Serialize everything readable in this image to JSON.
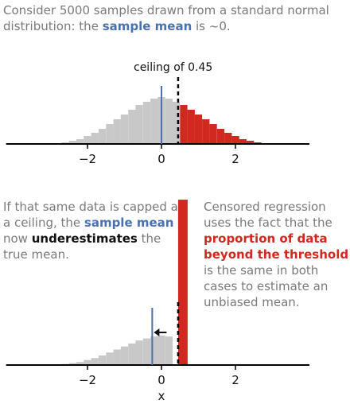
{
  "intro": {
    "part1": "Consider 5000 samples drawn from a standard normal distribution: the ",
    "highlight": "sample mean",
    "part2": " is ~0."
  },
  "ceiling_label": "ceiling of 0.45",
  "left_note": {
    "part1": "If that same data is capped at a ceiling, the ",
    "highlight1": "sample mean",
    "part2": " now ",
    "highlight2": "underestimates",
    "part3": " the true mean."
  },
  "right_note": {
    "part1": "Censored regression uses the fact that the ",
    "highlight": "proportion of data beyond the threshold",
    "part2": " is the same in both cases to estimate an unbiased mean."
  },
  "colors": {
    "gray": "#c8c8c8",
    "red": "#d1281f",
    "blue": "#4a72b0"
  },
  "chart_data": [
    {
      "type": "bar",
      "x": [
        -2.8,
        -2.6,
        -2.4,
        -2.2,
        -2.0,
        -1.8,
        -1.6,
        -1.4,
        -1.2,
        -1.0,
        -0.8,
        -0.6,
        -0.4,
        -0.2,
        0.0,
        0.2,
        0.4,
        0.6,
        0.8,
        1.0,
        1.2,
        1.4,
        1.6,
        1.8,
        2.0,
        2.2,
        2.4,
        2.6
      ],
      "values": [
        1,
        2,
        4,
        6,
        10,
        14,
        19,
        25,
        31,
        37,
        43,
        49,
        53,
        57,
        59,
        57,
        53,
        49,
        43,
        37,
        31,
        25,
        19,
        14,
        10,
        6,
        4,
        2
      ],
      "threshold": 0.45,
      "sample_mean": 0.0,
      "xticks": [
        "−2",
        "0",
        "2"
      ],
      "xtick_values": [
        -2,
        0,
        2
      ],
      "xlim": [
        -4.2,
        4.0
      ]
    },
    {
      "type": "bar",
      "x": [
        -2.8,
        -2.6,
        -2.4,
        -2.2,
        -2.0,
        -1.8,
        -1.6,
        -1.4,
        -1.2,
        -1.0,
        -0.8,
        -0.6,
        -0.4,
        -0.2,
        0.0,
        0.2,
        0.45
      ],
      "values": [
        1,
        2,
        4,
        6,
        10,
        14,
        19,
        25,
        31,
        37,
        43,
        49,
        53,
        57,
        59,
        57,
        330
      ],
      "threshold": 0.45,
      "sample_mean": -0.25,
      "xticks": [
        "−2",
        "0",
        "2"
      ],
      "xtick_values": [
        -2,
        0,
        2
      ],
      "xlabel": "x",
      "xlim": [
        -4.2,
        4.0
      ]
    }
  ]
}
